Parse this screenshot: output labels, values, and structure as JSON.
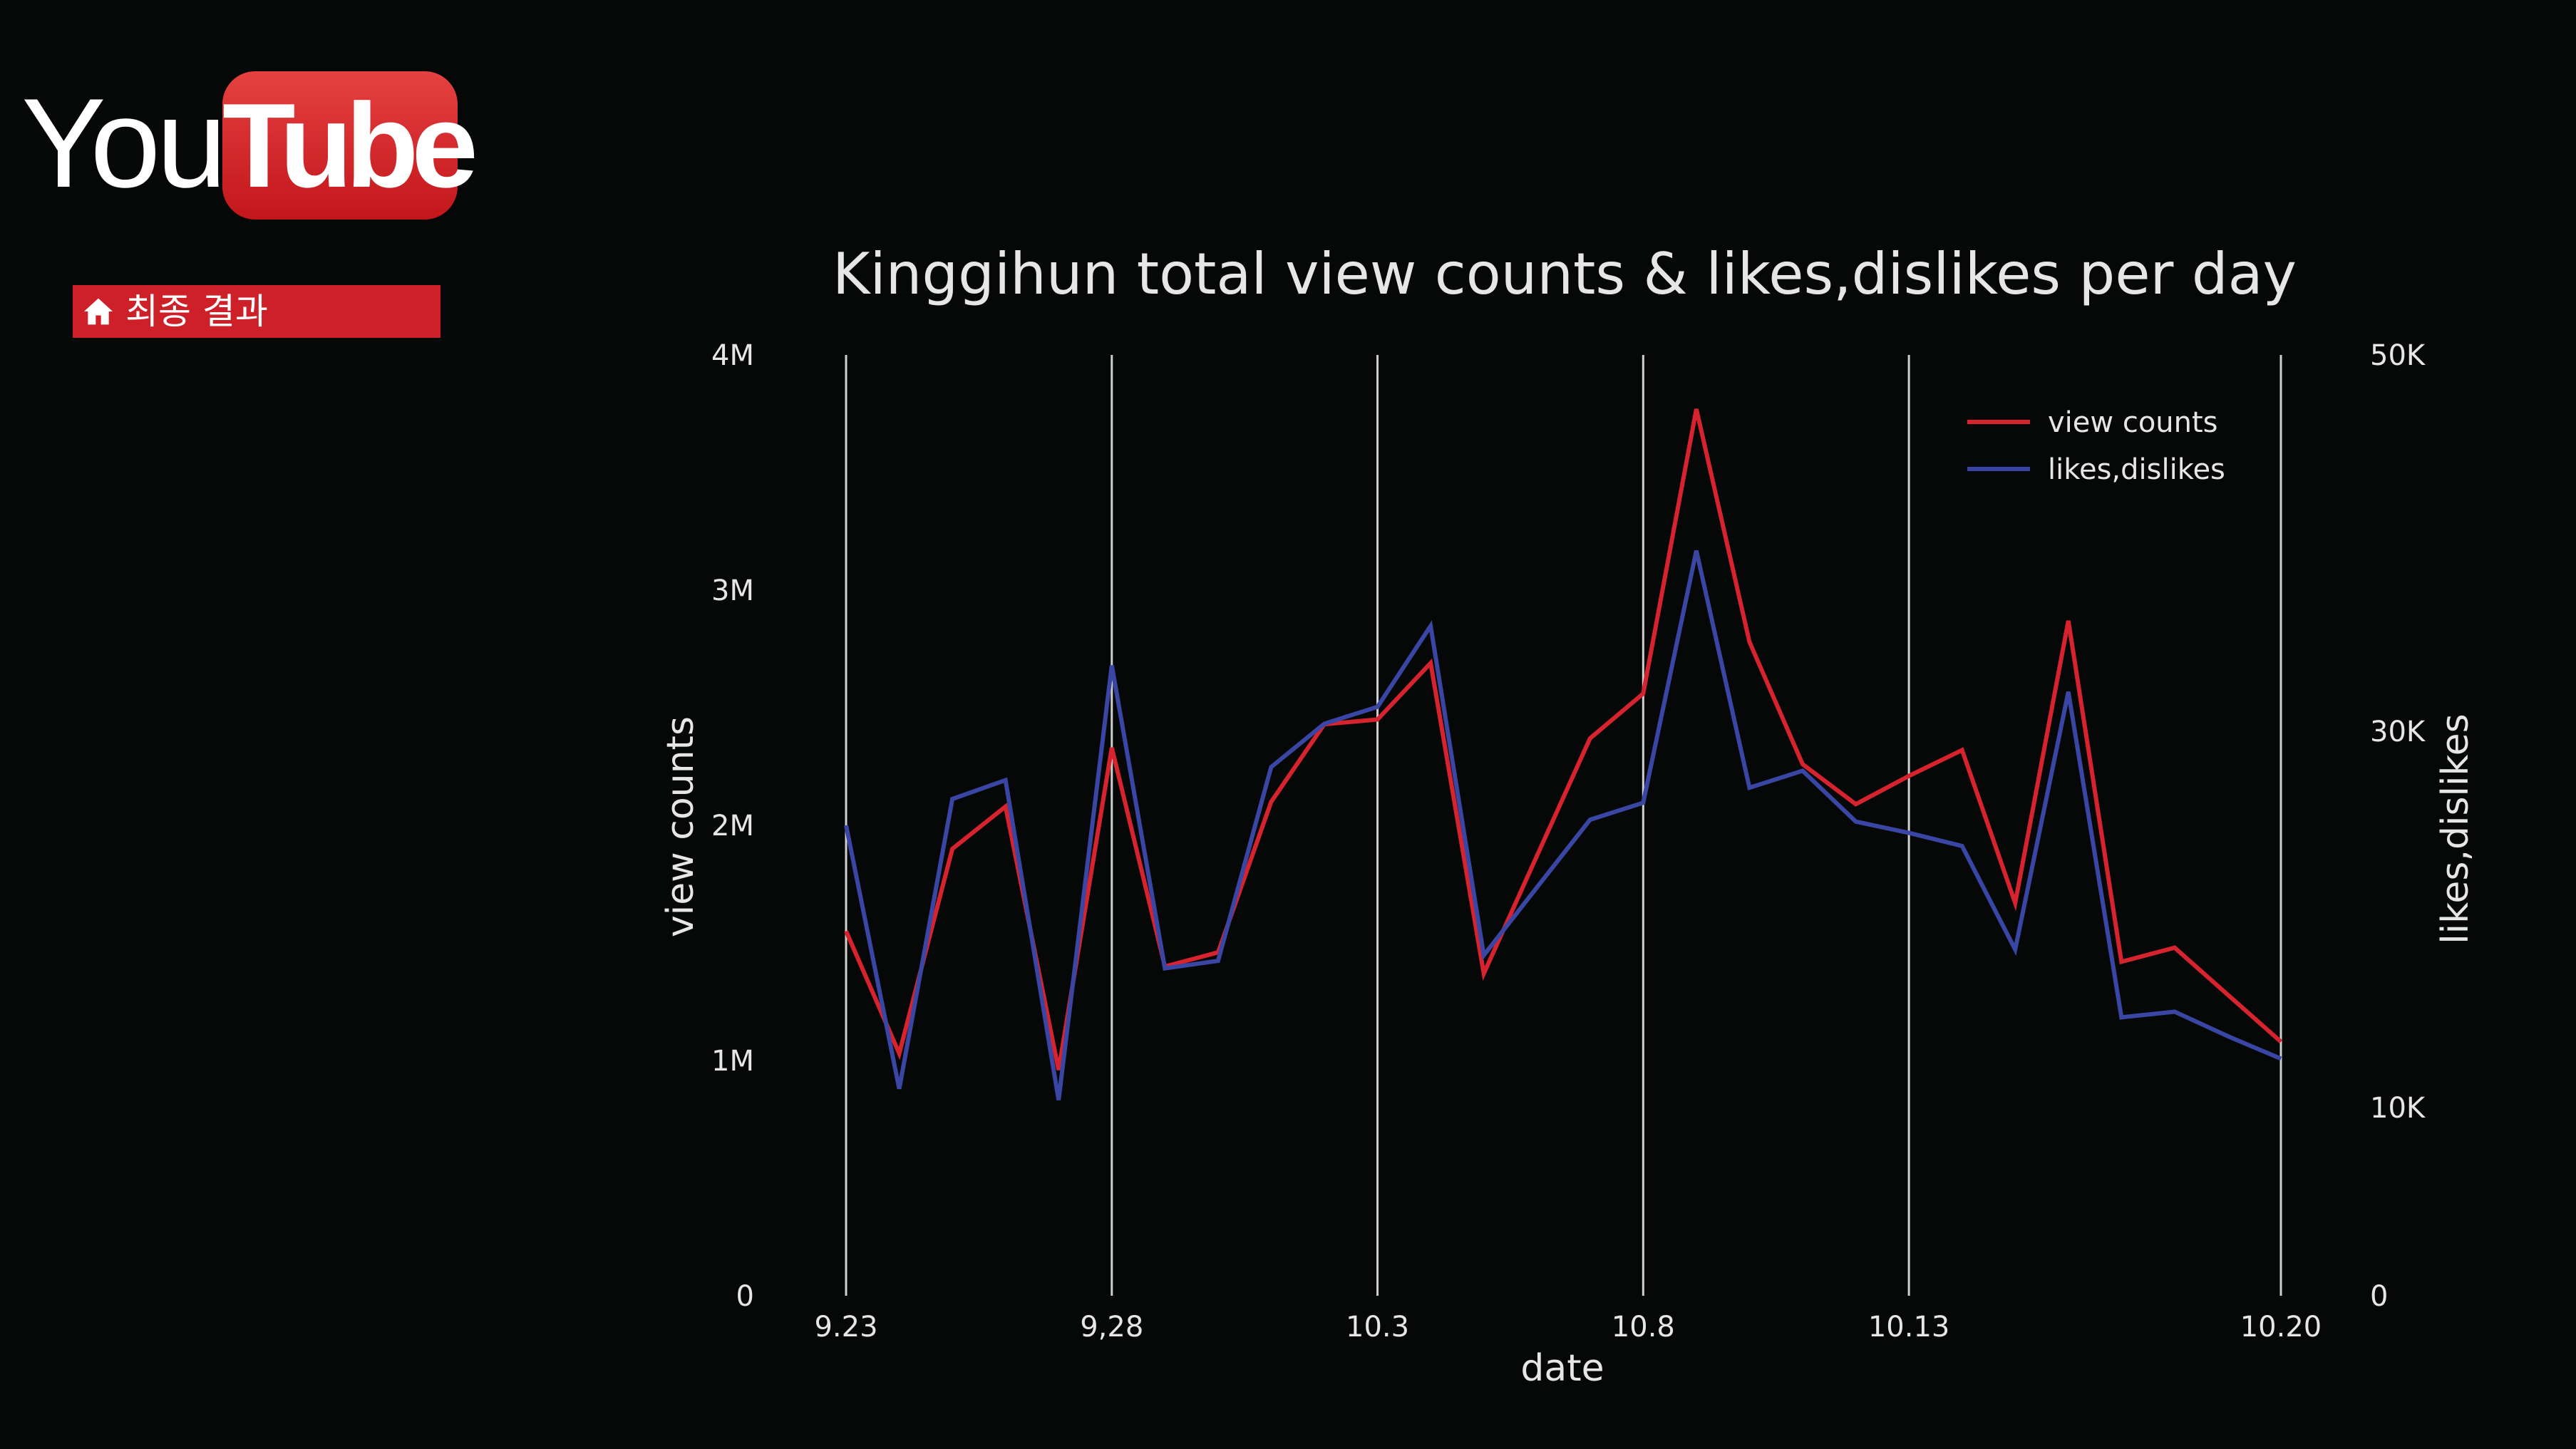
{
  "colors": {
    "background": "#060808",
    "view_counts": "#d6232e",
    "likes_dislikes": "#3a46a4",
    "grid": "#cfcfcf",
    "text": "#e6e6e6",
    "badge": "#ce2029"
  },
  "logo": {
    "you": "You",
    "tube": "Tube"
  },
  "nav": {
    "badge_label": "최종 결과",
    "badge_icon": "home-icon"
  },
  "chart_data": {
    "type": "line",
    "title": "Kinggihun total view counts & likes,dislikes per day",
    "xlabel": "date",
    "ylabel": "view counts",
    "y2label": "likes,dislikes",
    "x": [
      "9.23",
      "9.24",
      "9.25",
      "9.26",
      "9.27",
      "9.28",
      "9.29",
      "9.30",
      "10.1",
      "10.2",
      "10.3",
      "10.4",
      "10.5",
      "10.6",
      "10.7",
      "10.8",
      "10.9",
      "10.10",
      "10.11",
      "10.12",
      "10.13",
      "10.14",
      "10.15",
      "10.16",
      "10.17",
      "10.18",
      "10.19",
      "10.20"
    ],
    "xticks": [
      {
        "label": "9.23",
        "x": "9.23"
      },
      {
        "label": "9,28",
        "x": "9.28"
      },
      {
        "label": "10.3",
        "x": "10.3"
      },
      {
        "label": "10.8",
        "x": "10.8"
      },
      {
        "label": "10.13",
        "x": "10.13"
      },
      {
        "label": "10.20",
        "x": "10.20"
      }
    ],
    "yticks_left": [
      {
        "label": "0",
        "value": 0
      },
      {
        "label": "1M",
        "value": 1000000
      },
      {
        "label": "2M",
        "value": 2000000
      },
      {
        "label": "3M",
        "value": 3000000
      },
      {
        "label": "4M",
        "value": 4000000
      }
    ],
    "yticks_right": [
      {
        "label": "0",
        "value": 0
      },
      {
        "label": "10K",
        "value": 10000
      },
      {
        "label": "30K",
        "value": 30000
      },
      {
        "label": "50K",
        "value": 50000
      }
    ],
    "ylim": [
      0,
      4000000
    ],
    "y2lim": [
      0,
      50000
    ],
    "grid": "vertical",
    "legend_position": "top-right",
    "series": [
      {
        "name": "view counts",
        "axis": "left",
        "values": [
          1550000,
          1030000,
          1900000,
          2080000,
          960000,
          2330000,
          1400000,
          1460000,
          2100000,
          2430000,
          2450000,
          2690000,
          1370000,
          1870000,
          2370000,
          2560000,
          3770000,
          2780000,
          2260000,
          2090000,
          2210000,
          2320000,
          1670000,
          2870000,
          1420000,
          1480000,
          1280000,
          1080000
        ]
      },
      {
        "name": "likes,dislikes",
        "axis": "right",
        "values": [
          25000,
          11000,
          26400,
          27400,
          10400,
          33500,
          17400,
          17800,
          28100,
          30400,
          31300,
          35600,
          18100,
          21700,
          25300,
          26200,
          39600,
          27000,
          27900,
          25200,
          24600,
          23900,
          18400,
          32100,
          14800,
          15100,
          13800,
          12600
        ]
      }
    ]
  }
}
